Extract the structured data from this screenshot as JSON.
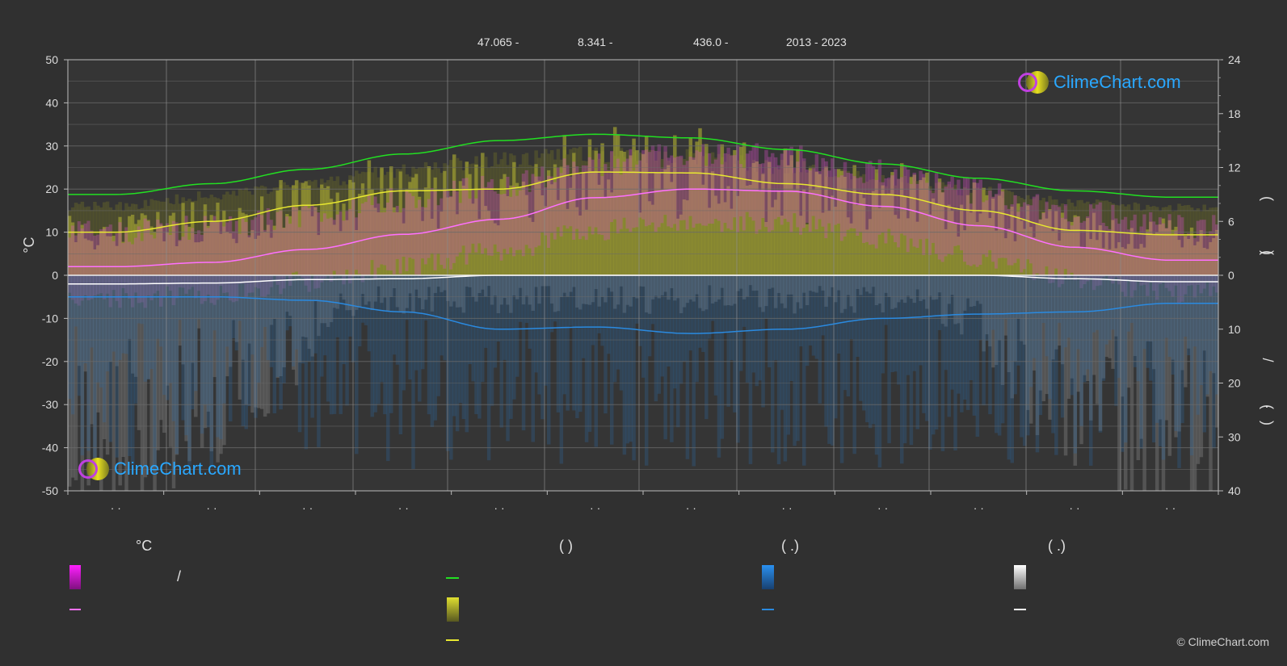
{
  "header": {
    "lat": "47.065 -",
    "lon": "8.341 -",
    "elev": "436.0 -",
    "years": "2013 - 2023"
  },
  "branding": {
    "logo_text": "ClimeChart.com",
    "copyright": "© ClimeChart.com"
  },
  "legend": {
    "temp_header": "°C",
    "col2_header": "(          )",
    "col3_header": "(   .)",
    "col4_header": "(   .)",
    "slash": "/"
  },
  "chart_data": {
    "type": "line",
    "ylabel_left": "°C",
    "ylim_left": [
      -50,
      50
    ],
    "yticks_left": [
      "50",
      "40",
      "30",
      "20",
      "10",
      "0",
      "-10",
      "-20",
      "-30",
      "-40",
      "-50"
    ],
    "yticks_right_top": [
      "24",
      "18",
      "12",
      "6",
      "0"
    ],
    "yticks_right_bottom": [
      "10",
      "20",
      "30",
      "40"
    ],
    "right_axis_marks": [
      "(",
      ")",
      "(",
      "/",
      "(",
      "·",
      ")"
    ],
    "x_tick_labels": [
      "· ·",
      "· ·",
      "· ·",
      "· ·",
      "· ·",
      "· ·",
      "· ·",
      "· ·",
      "· ·",
      "· ·",
      "· ·",
      "· ·"
    ],
    "colors": {
      "daylight": "#22e022",
      "sunshine": "#e8e830",
      "temp_mean": "#ff70ff",
      "temp_band": "#d050c0",
      "rain": "#2a8ae0",
      "snow": "#ffffff"
    },
    "series": [
      {
        "key": "daylight_hours",
        "axis": "right_hours",
        "values": [
          9.0,
          10.2,
          11.8,
          13.5,
          15.0,
          15.7,
          15.3,
          14.0,
          12.4,
          10.8,
          9.4,
          8.7
        ]
      },
      {
        "key": "sunshine_hours",
        "axis": "right_hours",
        "values": [
          4.8,
          6.0,
          7.8,
          9.4,
          9.6,
          11.5,
          11.4,
          10.2,
          9.0,
          7.2,
          5.0,
          4.5
        ]
      },
      {
        "key": "temp_mean",
        "axis": "left",
        "values": [
          2.0,
          3.0,
          6.0,
          9.5,
          13.0,
          18.0,
          20.0,
          19.5,
          16.0,
          11.5,
          6.5,
          3.5
        ]
      },
      {
        "key": "snow_line",
        "axis": "left",
        "values": [
          -2.0,
          -1.8,
          -1.0,
          -0.8,
          0.0,
          0.0,
          0.0,
          0.0,
          0.0,
          0.0,
          -0.8,
          -1.5
        ]
      },
      {
        "key": "rain_line",
        "axis": "left",
        "values": [
          -5.0,
          -5.0,
          -5.8,
          -8.5,
          -12.5,
          -12.0,
          -13.5,
          -12.5,
          -10.0,
          -9.0,
          -8.5,
          -6.5
        ]
      }
    ]
  }
}
